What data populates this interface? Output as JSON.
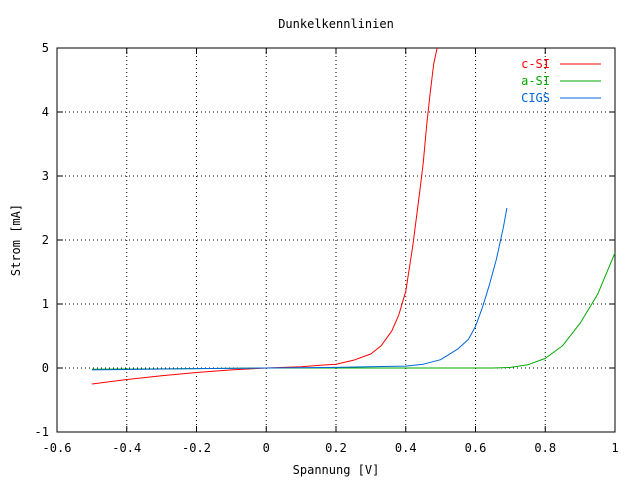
{
  "chart_data": {
    "type": "line",
    "title": "Dunkelkennlinien",
    "xlabel": "Spannung [V]",
    "ylabel": "Strom [mA]",
    "xlim": [
      -0.6,
      1.0
    ],
    "ylim": [
      -1,
      5
    ],
    "x_ticks": [
      "-0.6",
      "-0.4",
      "-0.2",
      "0",
      "0.2",
      "0.4",
      "0.6",
      "0.8",
      "1"
    ],
    "y_ticks": [
      "-1",
      "0",
      "1",
      "2",
      "3",
      "4",
      "5"
    ],
    "grid": true,
    "legend_position": "top-right",
    "series": [
      {
        "name": "c-SI",
        "color": "#ff0000",
        "x": [
          -0.5,
          -0.4,
          -0.3,
          -0.2,
          -0.1,
          0.0,
          0.1,
          0.15,
          0.2,
          0.25,
          0.3,
          0.33,
          0.36,
          0.38,
          0.4,
          0.42,
          0.44,
          0.45,
          0.46,
          0.47,
          0.48,
          0.49
        ],
        "y": [
          -0.25,
          -0.18,
          -0.12,
          -0.07,
          -0.03,
          0.0,
          0.02,
          0.04,
          0.06,
          0.12,
          0.22,
          0.35,
          0.58,
          0.83,
          1.2,
          1.9,
          2.75,
          3.2,
          3.8,
          4.3,
          4.75,
          5.0
        ]
      },
      {
        "name": "a-SI",
        "color": "#00aa00",
        "x": [
          -0.5,
          -0.2,
          0.0,
          0.2,
          0.5,
          0.65,
          0.7,
          0.75,
          0.8,
          0.85,
          0.9,
          0.95,
          1.0
        ],
        "y": [
          -0.02,
          -0.01,
          0.0,
          0.0,
          0.0,
          0.0,
          0.01,
          0.05,
          0.15,
          0.35,
          0.7,
          1.15,
          1.8
        ]
      },
      {
        "name": "CIGS",
        "color": "#0066dd",
        "x": [
          -0.5,
          -0.2,
          0.0,
          0.2,
          0.4,
          0.45,
          0.5,
          0.55,
          0.58,
          0.6,
          0.62,
          0.64,
          0.66,
          0.68,
          0.69
        ],
        "y": [
          -0.03,
          -0.01,
          0.0,
          0.01,
          0.03,
          0.06,
          0.13,
          0.3,
          0.45,
          0.65,
          0.95,
          1.3,
          1.7,
          2.2,
          2.5
        ]
      }
    ]
  }
}
